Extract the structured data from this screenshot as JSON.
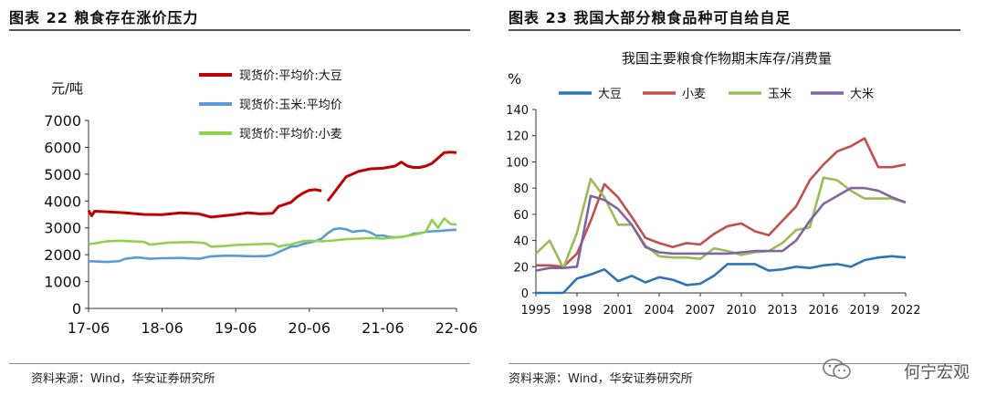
{
  "left": {
    "figure_title": "图表 22 粮食存在涨价压力",
    "source": "资料来源：Wind，华安证券研究所"
  },
  "right": {
    "figure_title": "图表 23  我国大部分粮食品种可自给自足",
    "source": "资料来源：Wind，华安证券研究所"
  },
  "watermark": "何宁宏观",
  "chart_data": [
    {
      "type": "line",
      "title": "",
      "ylabel": "元/吨",
      "xlabel": "",
      "ylim": [
        0,
        7000
      ],
      "yticks": [
        0,
        1000,
        2000,
        3000,
        4000,
        5000,
        6000,
        7000
      ],
      "xlim": [
        0,
        60
      ],
      "xticks": [
        0,
        12,
        24,
        36,
        48,
        60
      ],
      "xticklabels": [
        "17-06",
        "18-06",
        "19-06",
        "20-06",
        "21-06",
        "22-06"
      ],
      "legend_position": "top-right",
      "series": [
        {
          "name": "现货价:平均价:大豆",
          "color": "#c00000",
          "points": [
            [
              0,
              3650
            ],
            [
              0.5,
              3450
            ],
            [
              1,
              3620
            ],
            [
              3,
              3600
            ],
            [
              6,
              3560
            ],
            [
              9,
              3500
            ],
            [
              12,
              3490
            ],
            [
              15,
              3560
            ],
            [
              18,
              3520
            ],
            [
              20,
              3400
            ],
            [
              22,
              3450
            ],
            [
              24,
              3500
            ],
            [
              26,
              3560
            ],
            [
              28,
              3520
            ],
            [
              30,
              3540
            ],
            [
              31,
              3800
            ],
            [
              33,
              3950
            ],
            [
              34,
              4150
            ],
            [
              35,
              4300
            ],
            [
              36,
              4400
            ],
            [
              37,
              4420
            ],
            [
              38,
              4380
            ],
            [
              null,
              null
            ],
            [
              39,
              4000
            ],
            [
              40,
              4300
            ],
            [
              41,
              4600
            ],
            [
              42,
              4900
            ],
            [
              44,
              5100
            ],
            [
              46,
              5200
            ],
            [
              48,
              5220
            ],
            [
              50,
              5300
            ],
            [
              51,
              5450
            ],
            [
              52,
              5300
            ],
            [
              53,
              5250
            ],
            [
              54,
              5250
            ],
            [
              55,
              5300
            ],
            [
              56,
              5400
            ],
            [
              57,
              5600
            ],
            [
              58,
              5800
            ],
            [
              59,
              5820
            ],
            [
              60,
              5800
            ]
          ]
        },
        {
          "name": "现货价:玉米:平均价",
          "color": "#5b9bd5",
          "points": [
            [
              0,
              1760
            ],
            [
              3,
              1730
            ],
            [
              5,
              1760
            ],
            [
              6,
              1850
            ],
            [
              8,
              1900
            ],
            [
              10,
              1850
            ],
            [
              12,
              1870
            ],
            [
              15,
              1880
            ],
            [
              18,
              1850
            ],
            [
              20,
              1940
            ],
            [
              22,
              1960
            ],
            [
              24,
              1960
            ],
            [
              27,
              1940
            ],
            [
              29,
              1950
            ],
            [
              30,
              1990
            ],
            [
              31,
              2100
            ],
            [
              32,
              2200
            ],
            [
              33,
              2300
            ],
            [
              34,
              2320
            ],
            [
              35,
              2400
            ],
            [
              36,
              2450
            ],
            [
              37,
              2500
            ],
            [
              38,
              2600
            ],
            [
              39,
              2800
            ],
            [
              40,
              2950
            ],
            [
              41,
              2980
            ],
            [
              42,
              2950
            ],
            [
              43,
              2850
            ],
            [
              44,
              2880
            ],
            [
              45,
              2900
            ],
            [
              46,
              2820
            ],
            [
              47,
              2700
            ],
            [
              48,
              2720
            ],
            [
              49,
              2660
            ],
            [
              50,
              2650
            ],
            [
              51,
              2660
            ],
            [
              52,
              2700
            ],
            [
              53,
              2780
            ],
            [
              54,
              2800
            ],
            [
              55,
              2850
            ],
            [
              56,
              2870
            ],
            [
              57,
              2880
            ],
            [
              58,
              2900
            ],
            [
              59,
              2920
            ],
            [
              60,
              2930
            ]
          ]
        },
        {
          "name": "现货价:平均价:小麦",
          "color": "#92d050",
          "points": [
            [
              0,
              2400
            ],
            [
              1,
              2420
            ],
            [
              3,
              2500
            ],
            [
              5,
              2520
            ],
            [
              7,
              2500
            ],
            [
              9,
              2480
            ],
            [
              10,
              2380
            ],
            [
              11,
              2400
            ],
            [
              13,
              2450
            ],
            [
              15,
              2460
            ],
            [
              17,
              2470
            ],
            [
              19,
              2430
            ],
            [
              20,
              2300
            ],
            [
              22,
              2320
            ],
            [
              24,
              2360
            ],
            [
              26,
              2380
            ],
            [
              28,
              2400
            ],
            [
              30,
              2410
            ],
            [
              31,
              2300
            ],
            [
              32,
              2350
            ],
            [
              33,
              2380
            ],
            [
              34,
              2450
            ],
            [
              35,
              2500
            ],
            [
              36,
              2520
            ],
            [
              38,
              2500
            ],
            [
              40,
              2530
            ],
            [
              42,
              2580
            ],
            [
              44,
              2600
            ],
            [
              46,
              2620
            ],
            [
              48,
              2600
            ],
            [
              50,
              2640
            ],
            [
              51,
              2660
            ],
            [
              52,
              2700
            ],
            [
              53,
              2740
            ],
            [
              54,
              2800
            ],
            [
              55,
              2850
            ],
            [
              56,
              3300
            ],
            [
              57,
              3000
            ],
            [
              58,
              3350
            ],
            [
              59,
              3150
            ],
            [
              60,
              3120
            ]
          ]
        }
      ]
    },
    {
      "type": "line",
      "title": "我国主要粮食作物期末库存/消费量",
      "ylabel": "%",
      "xlabel": "",
      "ylim": [
        0,
        140
      ],
      "yticks": [
        0,
        20,
        40,
        60,
        80,
        100,
        120,
        140
      ],
      "xlim": [
        1995,
        2022
      ],
      "xticks": [
        1995,
        1998,
        2001,
        2004,
        2007,
        2010,
        2013,
        2016,
        2019,
        2022
      ],
      "legend_position": "top",
      "series": [
        {
          "name": "大豆",
          "color": "#2e75b6",
          "x": [
            1995,
            1996,
            1997,
            1998,
            1999,
            2000,
            2001,
            2002,
            2003,
            2004,
            2005,
            2006,
            2007,
            2008,
            2009,
            2010,
            2011,
            2012,
            2013,
            2014,
            2015,
            2016,
            2017,
            2018,
            2019,
            2020,
            2021,
            2022
          ],
          "values": [
            0,
            0,
            0,
            11,
            14,
            18,
            9,
            13,
            8,
            12,
            10,
            6,
            7,
            13,
            22,
            22,
            22,
            17,
            18,
            20,
            19,
            21,
            22,
            20,
            25,
            27,
            28,
            27
          ]
        },
        {
          "name": "小麦",
          "color": "#c0504d",
          "x": [
            1995,
            1996,
            1997,
            1998,
            1999,
            2000,
            2001,
            2002,
            2003,
            2004,
            2005,
            2006,
            2007,
            2008,
            2009,
            2010,
            2011,
            2012,
            2013,
            2014,
            2015,
            2016,
            2017,
            2018,
            2019,
            2020,
            2021,
            2022
          ],
          "values": [
            21,
            21,
            20,
            30,
            55,
            83,
            73,
            58,
            42,
            38,
            35,
            38,
            37,
            45,
            51,
            53,
            47,
            44,
            55,
            66,
            86,
            98,
            108,
            112,
            118,
            96,
            96,
            98
          ]
        },
        {
          "name": "玉米",
          "color": "#9bbb59",
          "x": [
            1995,
            1996,
            1997,
            1998,
            1999,
            2000,
            2001,
            2002,
            2003,
            2004,
            2005,
            2006,
            2007,
            2008,
            2009,
            2010,
            2011,
            2012,
            2013,
            2014,
            2015,
            2016,
            2017,
            2018,
            2019,
            2020,
            2021,
            2022
          ],
          "values": [
            30,
            40,
            19,
            46,
            87,
            73,
            52,
            52,
            36,
            28,
            27,
            27,
            26,
            34,
            32,
            29,
            31,
            32,
            38,
            48,
            50,
            88,
            86,
            78,
            72,
            72,
            72,
            69
          ]
        },
        {
          "name": "大米",
          "color": "#8064a2",
          "x": [
            1995,
            1996,
            1997,
            1998,
            1999,
            2000,
            2001,
            2002,
            2003,
            2004,
            2005,
            2006,
            2007,
            2008,
            2009,
            2010,
            2011,
            2012,
            2013,
            2014,
            2015,
            2016,
            2017,
            2018,
            2019,
            2020,
            2021,
            2022
          ],
          "values": [
            17,
            19,
            19,
            20,
            74,
            71,
            64,
            52,
            35,
            31,
            30,
            30,
            30,
            30,
            30,
            31,
            32,
            32,
            32,
            40,
            55,
            68,
            74,
            80,
            80,
            78,
            73,
            69
          ]
        }
      ]
    }
  ]
}
